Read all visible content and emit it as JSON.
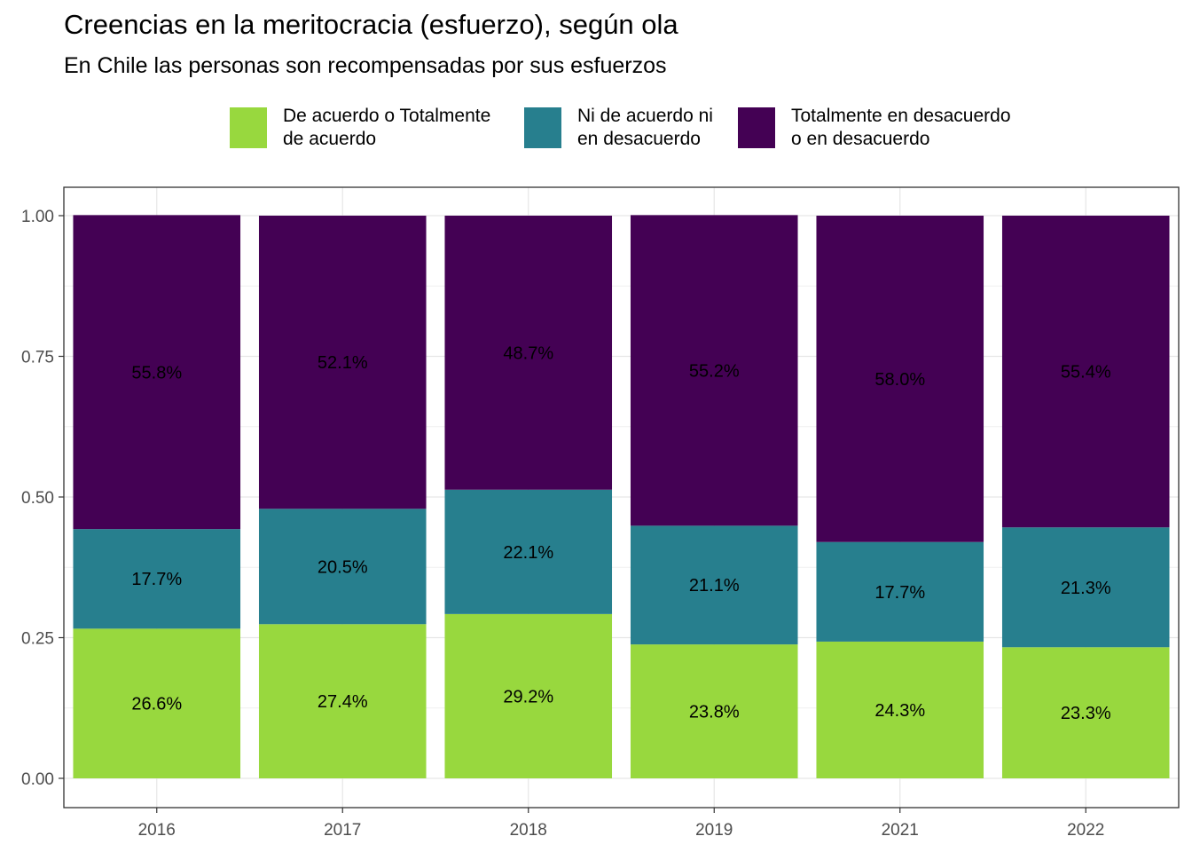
{
  "title": "Creencias en la meritocracia (esfuerzo), según ola",
  "subtitle": "En Chile las personas son recompensadas por sus esfuerzos",
  "legend": [
    {
      "lines": [
        "De acuerdo o Totalmente",
        "de acuerdo"
      ],
      "color": "#98d83e"
    },
    {
      "lines": [
        "Ni de acuerdo ni",
        "en desacuerdo"
      ],
      "color": "#277f8e"
    },
    {
      "lines": [
        "Totalmente en desacuerdo",
        "o en desacuerdo"
      ],
      "color": "#440154"
    }
  ],
  "chart_data": {
    "type": "bar",
    "stacked": true,
    "categories": [
      "2016",
      "2017",
      "2018",
      "2019",
      "2021",
      "2022"
    ],
    "series": [
      {
        "name": "De acuerdo o Totalmente de acuerdo",
        "color": "#98d83e",
        "values": [
          0.266,
          0.274,
          0.292,
          0.238,
          0.243,
          0.233
        ],
        "labels": [
          "26.6%",
          "27.4%",
          "29.2%",
          "23.8%",
          "24.3%",
          "23.3%"
        ]
      },
      {
        "name": "Ni de acuerdo ni en desacuerdo",
        "color": "#277f8e",
        "values": [
          0.177,
          0.205,
          0.221,
          0.211,
          0.177,
          0.213
        ],
        "labels": [
          "17.7%",
          "20.5%",
          "22.1%",
          "21.1%",
          "17.7%",
          "21.3%"
        ]
      },
      {
        "name": "Totalmente en desacuerdo o en desacuerdo",
        "color": "#440154",
        "values": [
          0.558,
          0.521,
          0.487,
          0.552,
          0.58,
          0.554
        ],
        "labels": [
          "55.8%",
          "52.1%",
          "48.7%",
          "55.2%",
          "58.0%",
          "55.4%"
        ]
      }
    ],
    "y_ticks": [
      "0.00",
      "0.25",
      "0.50",
      "0.75",
      "1.00"
    ],
    "ylim": [
      0,
      1
    ],
    "grid": true,
    "legend_position": "top"
  }
}
